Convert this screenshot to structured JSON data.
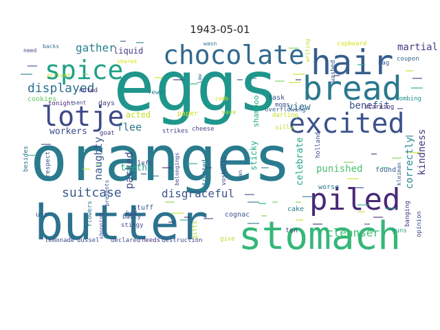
{
  "title": "1943-05-01",
  "words": [
    {
      "text": "oranges",
      "color": "#2a7b8e"
    },
    {
      "text": "eggs",
      "color": "#1f968b"
    },
    {
      "text": "butter",
      "color": "#2c728e"
    },
    {
      "text": "stomach",
      "color": "#35b779"
    },
    {
      "text": "hair",
      "color": "#365d8d"
    },
    {
      "text": "bread",
      "color": "#2a788e"
    },
    {
      "text": "chocolate",
      "color": "#31688e"
    },
    {
      "text": "excited",
      "color": "#3b528b"
    },
    {
      "text": "piled",
      "color": "#482878"
    },
    {
      "text": "spice",
      "color": "#1fa187"
    },
    {
      "text": "lotje",
      "color": "#3e4a89"
    },
    {
      "text": "displayed",
      "color": "#2d708e"
    },
    {
      "text": "suitcase",
      "color": "#38598c"
    },
    {
      "text": "gather",
      "color": "#277f8e"
    },
    {
      "text": "martial",
      "color": "#443983"
    },
    {
      "text": "view",
      "color": "#31688e"
    },
    {
      "text": "benefit",
      "color": "#3b528b"
    },
    {
      "text": "kindness",
      "color": "#46327e"
    },
    {
      "text": "correctly",
      "color": "#24868e"
    },
    {
      "text": "flee",
      "color": "#2c728e"
    },
    {
      "text": "workers",
      "color": "#3e4a89"
    },
    {
      "text": "naughty",
      "color": "#38598c"
    },
    {
      "text": "packed",
      "color": "#3e4a89"
    },
    {
      "text": "teeth",
      "color": "#21a585"
    },
    {
      "text": "disgraceful",
      "color": "#3b528b"
    },
    {
      "text": "cleanser",
      "color": "#3dbc74"
    },
    {
      "text": "punished",
      "color": "#4ac16d"
    },
    {
      "text": "celebrate",
      "color": "#20a486"
    },
    {
      "text": "sticky",
      "color": "#22a884"
    },
    {
      "text": "shampoo",
      "color": "#22a884"
    },
    {
      "text": "liquid",
      "color": "#433e85"
    },
    {
      "text": "acted",
      "color": "#c0df25"
    },
    {
      "text": "cookies",
      "color": "#5ec962"
    },
    {
      "text": "noted",
      "color": "#482173"
    },
    {
      "text": "sent",
      "color": "#3e4a89"
    },
    {
      "text": "days",
      "color": "#433e85"
    },
    {
      "text": "tonight",
      "color": "#482878"
    },
    {
      "text": "goat",
      "color": "#443983"
    },
    {
      "text": "fewer",
      "color": "#287d8e"
    },
    {
      "text": "task",
      "color": "#3b528b"
    },
    {
      "text": "moms",
      "color": "#3b528b"
    },
    {
      "text": "darling",
      "color": "#c2df23"
    },
    {
      "text": "overflowing",
      "color": "#355f8d"
    },
    {
      "text": "starving",
      "color": "#482173"
    },
    {
      "text": "combing",
      "color": "#21918c"
    },
    {
      "text": "paper",
      "color": "#c8e020"
    },
    {
      "text": "save",
      "color": "#addc30"
    },
    {
      "text": "strikes",
      "color": "#3f4788"
    },
    {
      "text": "cheese",
      "color": "#433e85"
    },
    {
      "text": "silly",
      "color": "#bade28"
    },
    {
      "text": "worse",
      "color": "#2c728e"
    },
    {
      "text": "found",
      "color": "#39568c"
    },
    {
      "text": "cake",
      "color": "#2a788e"
    },
    {
      "text": "stuff",
      "color": "#39568c"
    },
    {
      "text": "badly",
      "color": "#3b528b"
    },
    {
      "text": "stingy",
      "color": "#3e4a89"
    },
    {
      "text": "kid",
      "color": "#414487"
    },
    {
      "text": "cognac",
      "color": "#3b528b"
    },
    {
      "text": "ten",
      "color": "#3e4a89"
    },
    {
      "text": "use",
      "color": "#365d8d"
    },
    {
      "text": "lemonade",
      "color": "#3e4a89"
    },
    {
      "text": "dussel",
      "color": "#3e4a89"
    },
    {
      "text": "declared",
      "color": "#3e4a89"
    },
    {
      "text": "needs",
      "color": "#472d7b"
    },
    {
      "text": "destruction",
      "color": "#3e4a89"
    },
    {
      "text": "give",
      "color": "#b5de2b"
    },
    {
      "text": "opinion",
      "color": "#3e4a89"
    },
    {
      "text": "guns",
      "color": "#1fa187"
    },
    {
      "text": "banging",
      "color": "#443983"
    },
    {
      "text": "cupboard",
      "color": "#d2e21b"
    },
    {
      "text": "coupon",
      "color": "#31688e"
    },
    {
      "text": "bag",
      "color": "#365d8d"
    },
    {
      "text": "need",
      "color": "#3e4a89"
    },
    {
      "text": "backs",
      "color": "#2c728e"
    },
    {
      "text": "arrived",
      "color": "#c2df23"
    },
    {
      "text": "shared",
      "color": "#d8e219"
    },
    {
      "text": "respect",
      "color": "#3b528b"
    },
    {
      "text": "besides",
      "color": "#2c728e"
    },
    {
      "text": "shopping",
      "color": "#3e4a89"
    },
    {
      "text": "presents",
      "color": "#3b528b"
    },
    {
      "text": "belongings",
      "color": "#414487"
    },
    {
      "text": "treated",
      "color": "#2c728e"
    },
    {
      "text": "voskuijl",
      "color": "#414487"
    },
    {
      "text": "jan",
      "color": "#39568c"
    },
    {
      "text": "holland",
      "color": "#3e4a89"
    },
    {
      "text": "washed",
      "color": "#3b528b"
    },
    {
      "text": "kleiman",
      "color": "#3b528b"
    },
    {
      "text": "left",
      "color": "#414487"
    },
    {
      "text": "law",
      "color": "#2c728e"
    },
    {
      "text": "comb",
      "color": "#d2e21b"
    },
    {
      "text": "flowers",
      "color": "#2a788e"
    },
    {
      "text": "gifts",
      "color": "#addc30"
    },
    {
      "text": "writing",
      "color": "#bade28"
    },
    {
      "text": "wasn",
      "color": "#2c728e"
    }
  ]
}
